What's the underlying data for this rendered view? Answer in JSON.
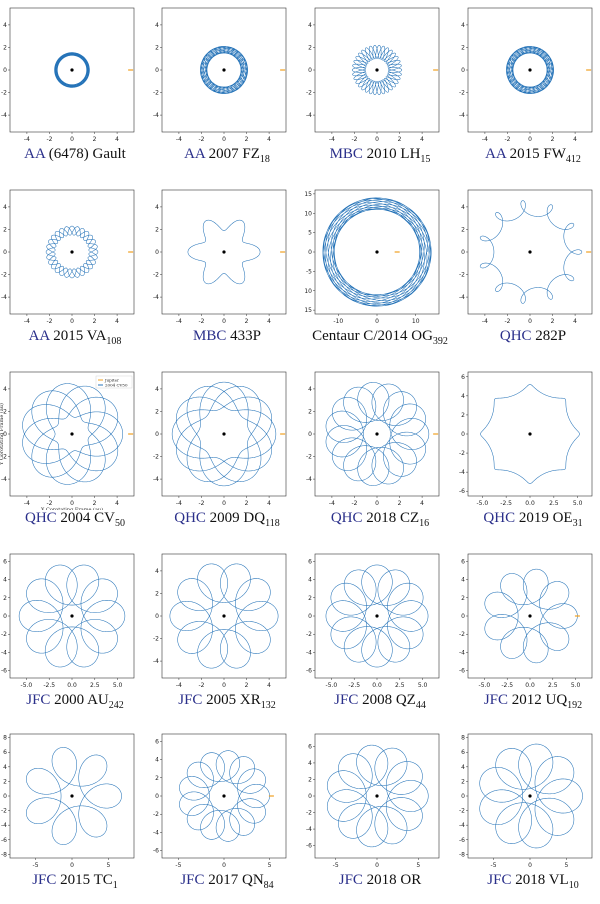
{
  "colors": {
    "orbit": "#2573b8",
    "orbit_dark": "#1c5aa8",
    "sun": "#000000",
    "jupiter": "#f0a020",
    "class_label": "#2a2f8a"
  },
  "chart_data": [
    {
      "type": "line",
      "cls": "AA",
      "name": " (6478) Gault",
      "sub": "",
      "pattern": "ring",
      "r1": 1.3,
      "r2": 1.55,
      "lim": 5.5,
      "ticks": [
        -4,
        -2,
        0,
        2,
        4
      ],
      "xticks": [
        -4,
        -2,
        0,
        2,
        4
      ],
      "jupiter": true
    },
    {
      "type": "line",
      "cls": "AA",
      "name": " 2007 FZ",
      "sub": "18",
      "pattern": "ring",
      "r1": 1.5,
      "r2": 2.1,
      "lim": 5.5,
      "ticks": [
        -4,
        -2,
        0,
        2,
        4
      ],
      "xticks": [
        -4,
        -2,
        0,
        2,
        4
      ],
      "jupiter": true
    },
    {
      "type": "line",
      "cls": "MBC",
      "name": " 2010 LH",
      "sub": "15",
      "pattern": "rosette",
      "r1": 1.0,
      "r2": 2.2,
      "lobes": 17,
      "lim": 5.5,
      "ticks": [
        -4,
        -2,
        0,
        2,
        4
      ],
      "xticks": [
        -4,
        -2,
        0,
        2,
        4
      ],
      "jupiter": true
    },
    {
      "type": "line",
      "cls": "AA",
      "name": " 2015 FW",
      "sub": "412",
      "pattern": "ring",
      "r1": 1.5,
      "r2": 2.1,
      "lim": 5.5,
      "ticks": [
        -4,
        -2,
        0,
        2,
        4
      ],
      "xticks": [
        -4,
        -2,
        0,
        2,
        4
      ],
      "jupiter": true
    },
    {
      "type": "line",
      "cls": "AA",
      "name": " 2015 VA",
      "sub": "108",
      "pattern": "rosette",
      "r1": 1.5,
      "r2": 2.3,
      "lobes": 14,
      "lim": 5.5,
      "ticks": [
        -4,
        -2,
        0,
        2,
        4
      ],
      "xticks": [
        -4,
        -2,
        0,
        2,
        4
      ],
      "jupiter": true
    },
    {
      "type": "line",
      "cls": "MBC",
      "name": " 433P",
      "sub": "",
      "pattern": "rosette",
      "r1": 1.9,
      "r2": 3.2,
      "lobes": 9,
      "lim": 5.5,
      "ticks": [
        -4,
        -2,
        0,
        2,
        4
      ],
      "xticks": [
        -4,
        -2,
        0,
        2,
        4
      ],
      "jupiter": true
    },
    {
      "type": "line",
      "cls": "",
      "name": "Centaur C/2014 OG",
      "sub": "392",
      "pattern": "ring",
      "r1": 11,
      "r2": 14,
      "lim": 16,
      "ticks": [
        -15,
        -10,
        -5,
        0,
        5,
        10,
        15
      ],
      "xticks": [
        -10,
        0,
        10
      ],
      "jupiter": true
    },
    {
      "type": "line",
      "cls": "QHC",
      "name": " 282P",
      "sub": "",
      "pattern": "loops",
      "r1": 3.2,
      "r2": 4.6,
      "lobes": 10,
      "lim": 5.5,
      "ticks": [
        -4,
        -2,
        0,
        2,
        4
      ],
      "xticks": [
        -4,
        -2,
        0,
        2,
        4
      ],
      "jupiter": true
    },
    {
      "type": "line",
      "cls": "QHC",
      "name": " 2004 CV",
      "sub": "50",
      "pattern": "star",
      "r1": 1.5,
      "r2": 4.5,
      "lobes": 11,
      "lim": 5.5,
      "ticks": [
        -4,
        -2,
        0,
        2,
        4
      ],
      "xticks": [
        -4,
        -2,
        0,
        2,
        4
      ],
      "jupiter": true,
      "xlabel": "X Corotating Frame (au)",
      "ylabel": "Y Corotating Frame (au)",
      "legend": [
        "Jupiter",
        "2004 CV50"
      ]
    },
    {
      "type": "line",
      "cls": "QHC",
      "name": " 2009 DQ",
      "sub": "118",
      "pattern": "star",
      "r1": 2.2,
      "r2": 4.6,
      "lobes": 12,
      "lim": 5.5,
      "ticks": [
        -4,
        -2,
        0,
        2,
        4
      ],
      "xticks": [
        -4,
        -2,
        0,
        2,
        4
      ],
      "jupiter": true
    },
    {
      "type": "line",
      "cls": "QHC",
      "name": " 2018 CZ",
      "sub": "16",
      "pattern": "loops",
      "r1": 1.2,
      "r2": 4.6,
      "lobes": 14,
      "lim": 5.5,
      "ticks": [
        -4,
        -2,
        0,
        2,
        4
      ],
      "xticks": [
        -4,
        -2,
        0,
        2,
        4
      ],
      "jupiter": true
    },
    {
      "type": "line",
      "cls": "QHC",
      "name": " 2019 OE",
      "sub": "31",
      "pattern": "loops",
      "r1": 4.4,
      "r2": 5.2,
      "lobes": 7,
      "lim": 6.5,
      "ticks": [
        -6,
        -4,
        -2,
        0,
        2,
        4,
        6
      ],
      "xticks": [
        -5,
        -2.5,
        0,
        2.5,
        5
      ],
      "xticklabels": [
        "-5.0",
        "-2.5",
        "0.0",
        "2.5",
        "5.0"
      ],
      "jupiter": false
    },
    {
      "type": "line",
      "cls": "JFC",
      "name": " 2000 AU",
      "sub": "242",
      "pattern": "loops",
      "r1": 1.2,
      "r2": 5.8,
      "lobes": 9,
      "lim": 6.8,
      "ticks": [
        -6,
        -4,
        -2,
        0,
        2,
        4,
        6
      ],
      "xticks": [
        -5,
        -2.5,
        0,
        2.5,
        5
      ],
      "xticklabels": [
        "-5.0",
        "-2.5",
        "0.0",
        "2.5",
        "5.0"
      ],
      "jupiter": false
    },
    {
      "type": "line",
      "cls": "JFC",
      "name": " 2005 XR",
      "sub": "132",
      "pattern": "loops",
      "r1": 1.2,
      "r2": 4.8,
      "lobes": 9,
      "lim": 5.5,
      "ticks": [
        -4,
        -2,
        0,
        2,
        4
      ],
      "xticks": [
        -4,
        -2,
        0,
        2,
        4
      ],
      "jupiter": false
    },
    {
      "type": "line",
      "cls": "JFC",
      "name": " 2008 QZ",
      "sub": "44",
      "pattern": "loops",
      "r1": 1.3,
      "r2": 5.6,
      "lobes": 11,
      "lim": 6.8,
      "ticks": [
        -6,
        -4,
        -2,
        0,
        2,
        4,
        6
      ],
      "xticks": [
        -5,
        -2.5,
        0,
        2.5,
        5
      ],
      "xticklabels": [
        "-5.0",
        "-2.5",
        "0.0",
        "2.5",
        "5.0"
      ],
      "jupiter": false
    },
    {
      "type": "line",
      "cls": "JFC",
      "name": " 2012 UQ",
      "sub": "192",
      "pattern": "loops",
      "r1": 1.3,
      "r2": 5.2,
      "lobes": 8,
      "lim": 6.8,
      "ticks": [
        -6,
        -4,
        -2,
        0,
        2,
        4,
        6
      ],
      "xticks": [
        -5,
        -2.5,
        0,
        2.5,
        5
      ],
      "xticklabels": [
        "-5.0",
        "-2.5",
        "0.0",
        "2.5",
        "5.0"
      ],
      "jupiter": true
    },
    {
      "type": "line",
      "cls": "JFC",
      "name": " 2015 TC",
      "sub": "1",
      "pattern": "loops",
      "r1": 1.5,
      "r2": 6.8,
      "lobes": 6,
      "lim": 8.5,
      "ticks": [
        -8,
        -6,
        -4,
        -2,
        0,
        2,
        4,
        6,
        8
      ],
      "xticks": [
        -5,
        0,
        5
      ],
      "jupiter": false
    },
    {
      "type": "line",
      "cls": "JFC",
      "name": " 2017 QN",
      "sub": "84",
      "pattern": "loops",
      "r1": 1.6,
      "r2": 5.0,
      "lobes": 12,
      "lim": 6.8,
      "ticks": [
        -6,
        -4,
        -2,
        0,
        2,
        4,
        6
      ],
      "xticks": [
        -5,
        0,
        5
      ],
      "jupiter": true
    },
    {
      "type": "line",
      "cls": "JFC",
      "name": " 2018 OR",
      "sub": "",
      "pattern": "loops",
      "r1": 1.3,
      "r2": 6.2,
      "lobes": 10,
      "lim": 7.5,
      "ticks": [
        -6,
        -4,
        -2,
        0,
        2,
        4,
        6
      ],
      "xticks": [
        -5,
        0,
        5
      ],
      "jupiter": false
    },
    {
      "type": "line",
      "cls": "JFC",
      "name": " 2018 VL",
      "sub": "10",
      "pattern": "loops",
      "r1": 1.0,
      "r2": 7.2,
      "lobes": 8,
      "lim": 8.5,
      "ticks": [
        -8,
        -6,
        -4,
        -2,
        0,
        2,
        4,
        6,
        8
      ],
      "xticks": [
        -5,
        0,
        5
      ],
      "jupiter": false
    }
  ]
}
